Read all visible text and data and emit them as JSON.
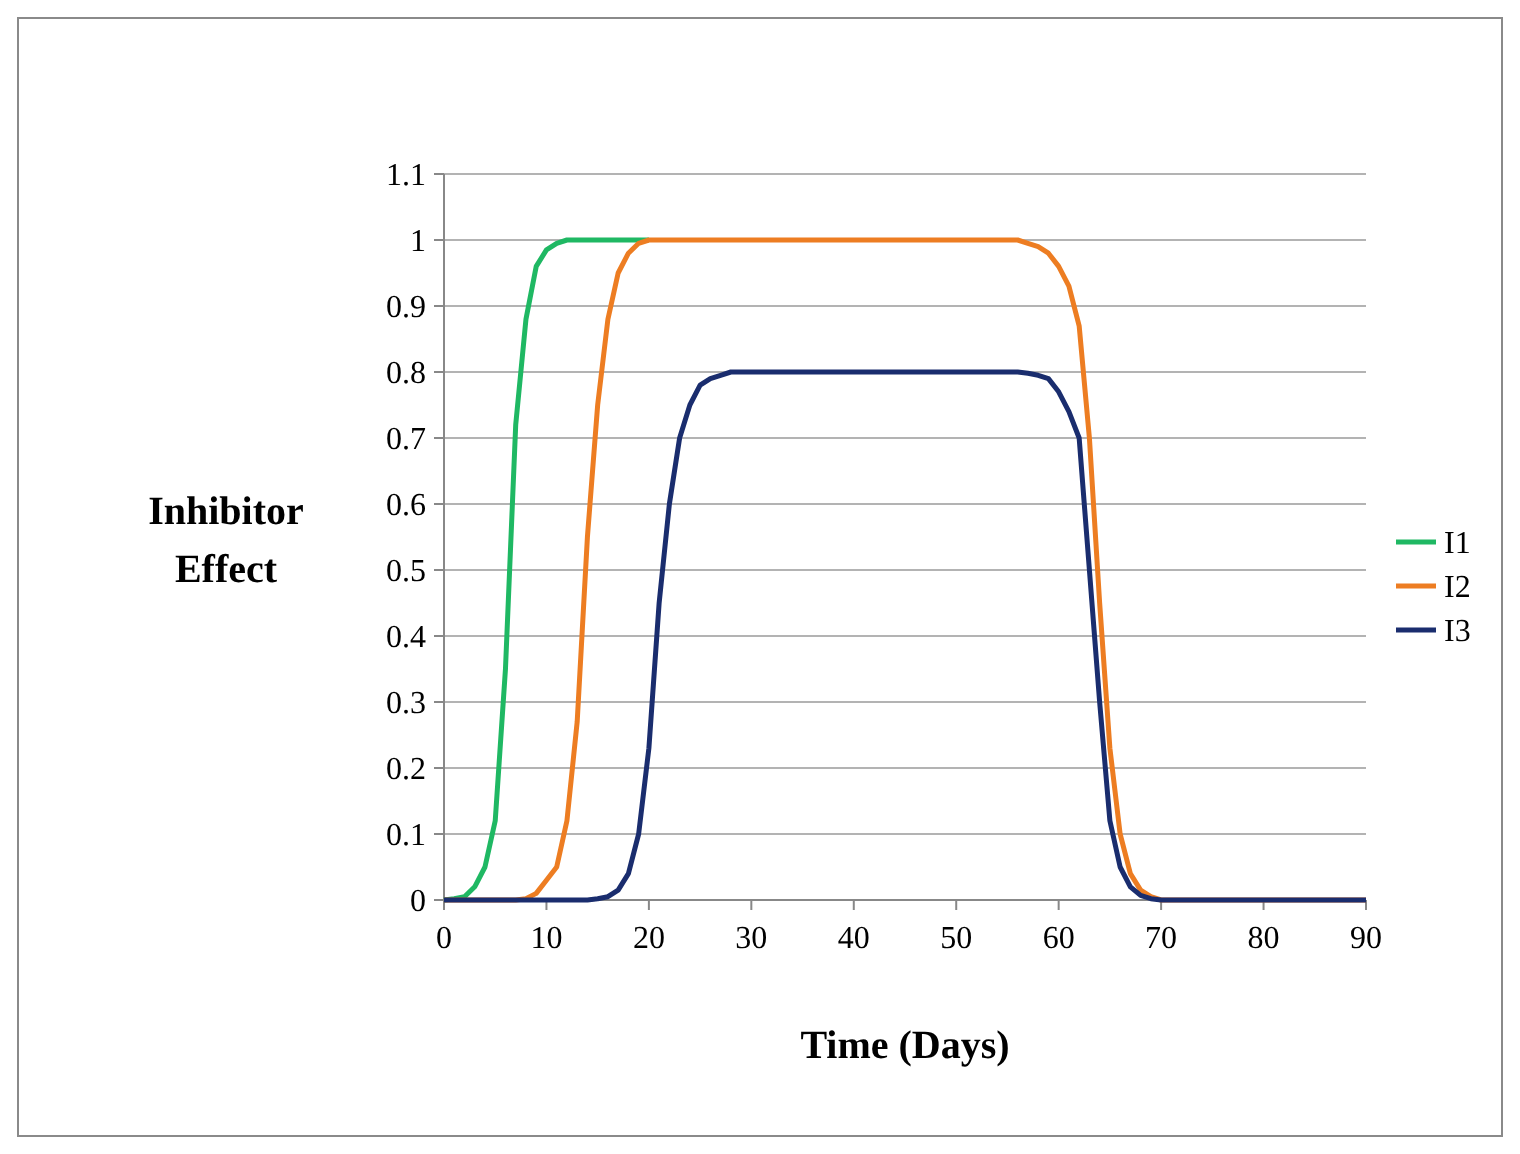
{
  "chart_data": {
    "type": "line",
    "xlabel": "Time (Days)",
    "ylabel": "Inhibitor Effect",
    "xlim": [
      0,
      90
    ],
    "xticks": [
      0,
      10,
      20,
      30,
      40,
      50,
      60,
      70,
      80,
      90
    ],
    "ylim": [
      0,
      1.1
    ],
    "yticks": [
      0,
      0.1,
      0.2,
      0.3,
      0.4,
      0.5,
      0.6,
      0.7,
      0.8,
      0.9,
      1,
      1.1
    ],
    "grid": "y",
    "legend": "right",
    "marker": "none",
    "line_style": "solid",
    "series": [
      {
        "name": "I1",
        "color": "#1fb863",
        "x": [
          0,
          1,
          2,
          3,
          4,
          5,
          6,
          7,
          8,
          9,
          10,
          11,
          12,
          14,
          16,
          18,
          20
        ],
        "values": [
          0,
          0.002,
          0.005,
          0.02,
          0.05,
          0.12,
          0.35,
          0.72,
          0.88,
          0.96,
          0.985,
          0.995,
          1,
          1,
          1,
          1,
          1
        ]
      },
      {
        "name": "I2",
        "color": "#ed7d22",
        "x": [
          0,
          7,
          8,
          9,
          10,
          11,
          12,
          13,
          14,
          15,
          16,
          17,
          18,
          19,
          20,
          30,
          40,
          50,
          56,
          57,
          58,
          59,
          60,
          61,
          62,
          63,
          64,
          65,
          66,
          67,
          68,
          69,
          70,
          80,
          90
        ],
        "values": [
          0,
          0,
          0.002,
          0.01,
          0.03,
          0.05,
          0.12,
          0.27,
          0.55,
          0.75,
          0.88,
          0.95,
          0.98,
          0.995,
          1,
          1,
          1,
          1,
          1,
          0.995,
          0.99,
          0.98,
          0.96,
          0.93,
          0.87,
          0.7,
          0.45,
          0.23,
          0.1,
          0.04,
          0.015,
          0.005,
          0,
          0,
          0
        ]
      },
      {
        "name": "I3",
        "color": "#1a2d6e",
        "x": [
          0,
          14,
          15,
          16,
          17,
          18,
          19,
          20,
          21,
          22,
          23,
          24,
          25,
          26,
          27,
          28,
          40,
          50,
          56,
          57,
          58,
          59,
          60,
          61,
          62,
          63,
          64,
          65,
          66,
          67,
          68,
          69,
          70,
          80,
          90
        ],
        "values": [
          0,
          0,
          0.002,
          0.005,
          0.015,
          0.04,
          0.1,
          0.23,
          0.45,
          0.6,
          0.7,
          0.75,
          0.78,
          0.79,
          0.795,
          0.8,
          0.8,
          0.8,
          0.8,
          0.798,
          0.795,
          0.79,
          0.77,
          0.74,
          0.7,
          0.5,
          0.3,
          0.12,
          0.05,
          0.02,
          0.007,
          0.002,
          0,
          0,
          0
        ]
      }
    ]
  }
}
